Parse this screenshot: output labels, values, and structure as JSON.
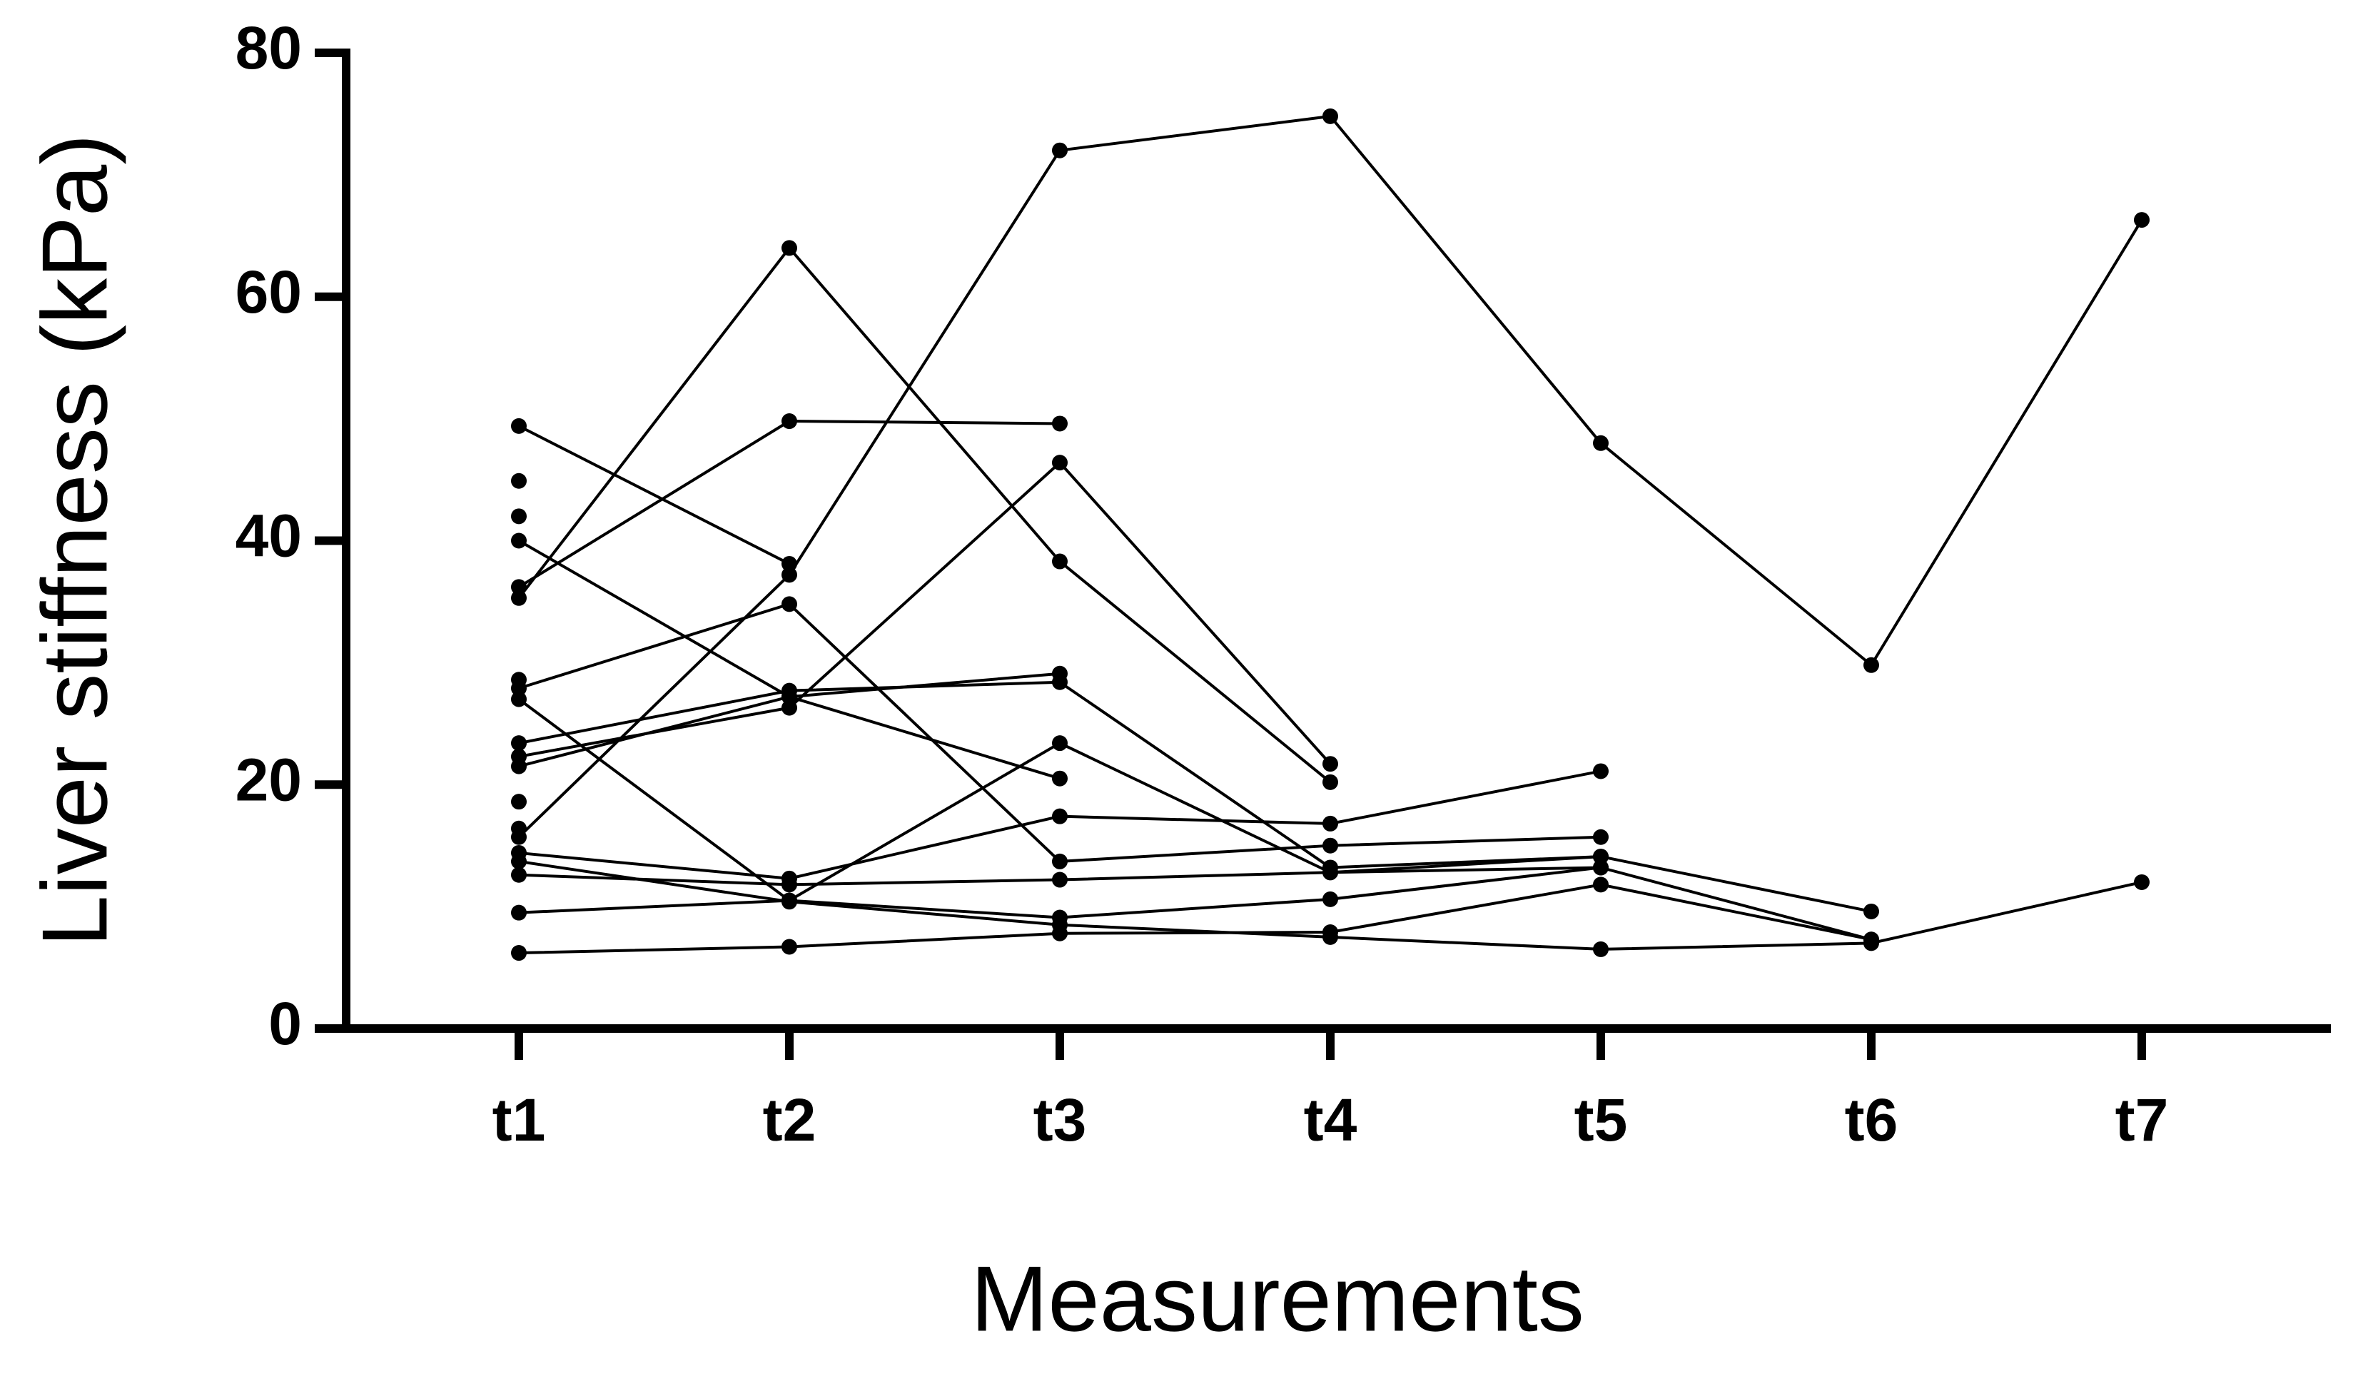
{
  "chart_data": {
    "type": "line",
    "x_label": "Measurements",
    "y_label": "Liver stiffness (kPa)",
    "categories": [
      "t1",
      "t2",
      "t3",
      "t4",
      "t5",
      "t6",
      "t7"
    ],
    "color": "#000000",
    "ylim": [
      0,
      80
    ],
    "yticks": [
      0,
      20,
      40,
      60,
      80
    ],
    "series": [
      {
        "values": [
          15.7,
          37.2,
          72,
          74.8,
          48,
          29.8,
          66.3
        ]
      },
      {
        "values": [
          35.3,
          64,
          38.3,
          20.2,
          null,
          null,
          null
        ]
      },
      {
        "values": [
          36.2,
          49.8,
          49.6,
          null,
          null,
          null,
          null
        ]
      },
      {
        "values": [
          49.4,
          38.1,
          null,
          null,
          null,
          null,
          null
        ]
      },
      {
        "values": [
          40,
          27.2,
          20.5,
          null,
          null,
          null,
          null
        ]
      },
      {
        "values": [
          27.9,
          34.8,
          13.7,
          15,
          15.7,
          null,
          null
        ]
      },
      {
        "values": [
          23.4,
          27.7,
          28.4,
          13.2,
          14.1,
          null,
          null
        ]
      },
      {
        "values": [
          22.3,
          26.3,
          46.4,
          21.7,
          null,
          null,
          null
        ]
      },
      {
        "values": [
          21.5,
          27.2,
          29.1,
          null,
          null,
          null,
          null
        ]
      },
      {
        "values": [
          27,
          10.5,
          23.4,
          12.8,
          13.2,
          7.3,
          null
        ]
      },
      {
        "values": [
          14.4,
          12.3,
          17.4,
          16.8,
          21.1,
          null,
          null
        ]
      },
      {
        "values": [
          13.7,
          10.4,
          8.5,
          7.5,
          6.5,
          7,
          12
        ]
      },
      {
        "values": [
          12.6,
          11.8,
          12.2,
          12.8,
          14.1,
          9.6,
          null
        ]
      },
      {
        "values": [
          9.5,
          10.5,
          9.1,
          10.6,
          13.2,
          null,
          null
        ]
      },
      {
        "values": [
          6.2,
          6.7,
          7.8,
          7.9,
          11.8,
          7.3,
          null
        ]
      },
      {
        "values": [
          28.6,
          null,
          null,
          null,
          null,
          null,
          null
        ]
      },
      {
        "values": [
          44.9,
          null,
          null,
          null,
          null,
          null,
          null
        ]
      },
      {
        "values": [
          42,
          null,
          null,
          null,
          null,
          null,
          null
        ]
      },
      {
        "values": [
          18.6,
          null,
          null,
          null,
          null,
          null,
          null
        ]
      },
      {
        "values": [
          16.4,
          null,
          null,
          null,
          null,
          null,
          null
        ]
      }
    ]
  }
}
